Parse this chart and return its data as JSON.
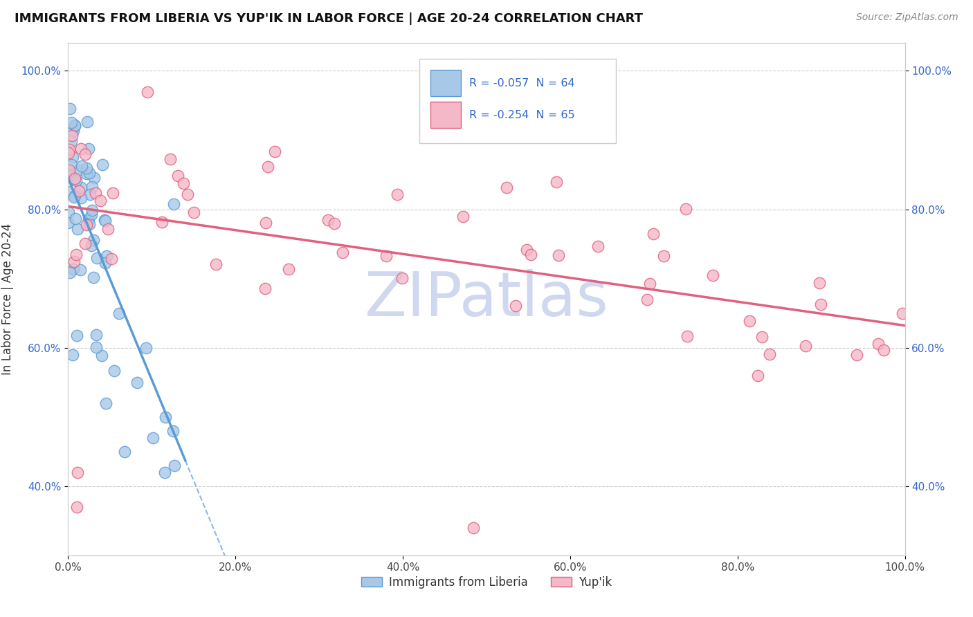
{
  "title": "IMMIGRANTS FROM LIBERIA VS YUP'IK IN LABOR FORCE | AGE 20-24 CORRELATION CHART",
  "source_text": "Source: ZipAtlas.com",
  "ylabel": "In Labor Force | Age 20-24",
  "xlim": [
    0,
    1
  ],
  "ylim": [
    0.3,
    1.04
  ],
  "xticks": [
    0.0,
    0.2,
    0.4,
    0.6,
    0.8,
    1.0
  ],
  "yticks": [
    0.4,
    0.6,
    0.8,
    1.0
  ],
  "xtick_labels": [
    "0.0%",
    "20.0%",
    "40.0%",
    "60.0%",
    "80.0%",
    "100.0%"
  ],
  "ytick_labels": [
    "40.0%",
    "60.0%",
    "80.0%",
    "100.0%"
  ],
  "legend": {
    "R1": -0.057,
    "N1": 64,
    "R2": -0.254,
    "N2": 65,
    "color1": "#a8c8e8",
    "color2": "#f4b8c8",
    "edge1": "#5b9bd5",
    "edge2": "#e0607e",
    "text_color": "#3366cc"
  },
  "color1": "#a8c8e8",
  "edge1": "#5b9bd5",
  "trend1": "#5b9bd5",
  "color2": "#f4b8c8",
  "edge2": "#e0607e",
  "trend2": "#e06080",
  "watermark_color": "#d0d8f0",
  "background_color": "#ffffff",
  "grid_color": "#cccccc"
}
